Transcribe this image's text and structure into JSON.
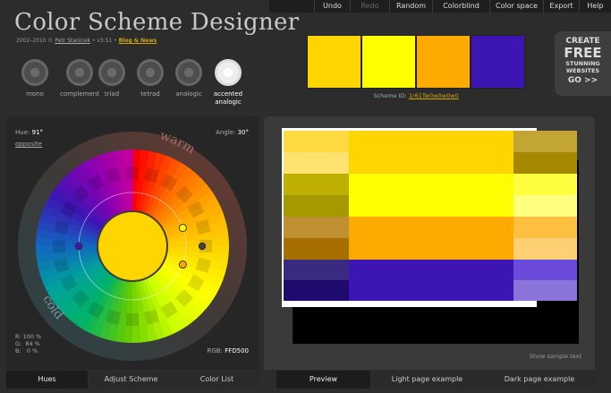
{
  "menu": [
    "Undo",
    "Redo",
    "Random",
    "Colorblind",
    "Color space",
    "Export",
    "Help"
  ],
  "menu_disabled": [
    "Redo"
  ],
  "header": {
    "title": "Color Scheme Designer",
    "copyright": "2002–2010 ©",
    "author": "Petr Stanicek",
    "version": " • v3.51 •",
    "blog": "Blog & News"
  },
  "scheme_types": [
    {
      "label": "mono",
      "icon": "mono-scheme-icon",
      "active": false
    },
    {
      "label": "complement",
      "icon": "complement-scheme-icon",
      "active": false
    },
    {
      "label": "triad",
      "icon": "triad-scheme-icon",
      "active": false
    },
    {
      "label": "tetrad",
      "icon": "tetrad-scheme-icon",
      "active": false
    },
    {
      "label": "analogic",
      "icon": "analogic-scheme-icon",
      "active": false
    },
    {
      "label": "accented\nanalogic",
      "icon": "accented-analogic-scheme-icon",
      "active": true
    }
  ],
  "swatches": [
    "#FFD500",
    "#FFFF00",
    "#FFAA00",
    "#3D15B3"
  ],
  "scheme_id": {
    "label": "Scheme ID:",
    "value": "1r61Tw0w0w0w0"
  },
  "ad": {
    "line1": "CREATE",
    "line2": "FREE",
    "line3": "STUNNING\nWEBSITES",
    "line4": "GO >>"
  },
  "controls": {
    "hue_label": "Hue:",
    "hue_value": "91°",
    "opposite": "opposite",
    "angle_label": "Angle:",
    "angle_value": "30°",
    "rgb_readout": "R: 100 %\nG:  84 %\nB:   0 %",
    "rgb_label": "RGB:",
    "rgb_value": "FFD500"
  },
  "wheel": {
    "warm_label": "warm",
    "cold_label": "cold",
    "center_color": "#FFD500",
    "dots": [
      "#FFFF00",
      "#FFAA00",
      "#3D15B3",
      "#FFD500"
    ]
  },
  "preview": {
    "main_colors": [
      "#FFD500",
      "#FFFF00",
      "#FFAA00",
      "#3D15B3"
    ],
    "left_shades": [
      [
        "#FFDA40",
        "#FFE270"
      ],
      [
        "#BFAF00",
        "#A69900"
      ],
      [
        "#BF8F30",
        "#A66F00"
      ],
      [
        "#3A2A80",
        "#1F0B6E"
      ]
    ],
    "right_shades": [
      [
        "#C2A533",
        "#A68800"
      ],
      [
        "#FFFF40",
        "#FFFF80"
      ],
      [
        "#FFBF40",
        "#FFCF73"
      ],
      [
        "#6C4ADA",
        "#8A74DA"
      ]
    ],
    "show_sample": "Show sample text"
  },
  "tabs": {
    "left": [
      {
        "label": "Hues",
        "active": true
      },
      {
        "label": "Adjust Scheme",
        "active": false
      },
      {
        "label": "Color List",
        "active": false
      }
    ],
    "right": [
      {
        "label": "Preview",
        "active": true
      },
      {
        "label": "Light page example",
        "active": false
      },
      {
        "label": "Dark page example",
        "active": false
      }
    ]
  }
}
